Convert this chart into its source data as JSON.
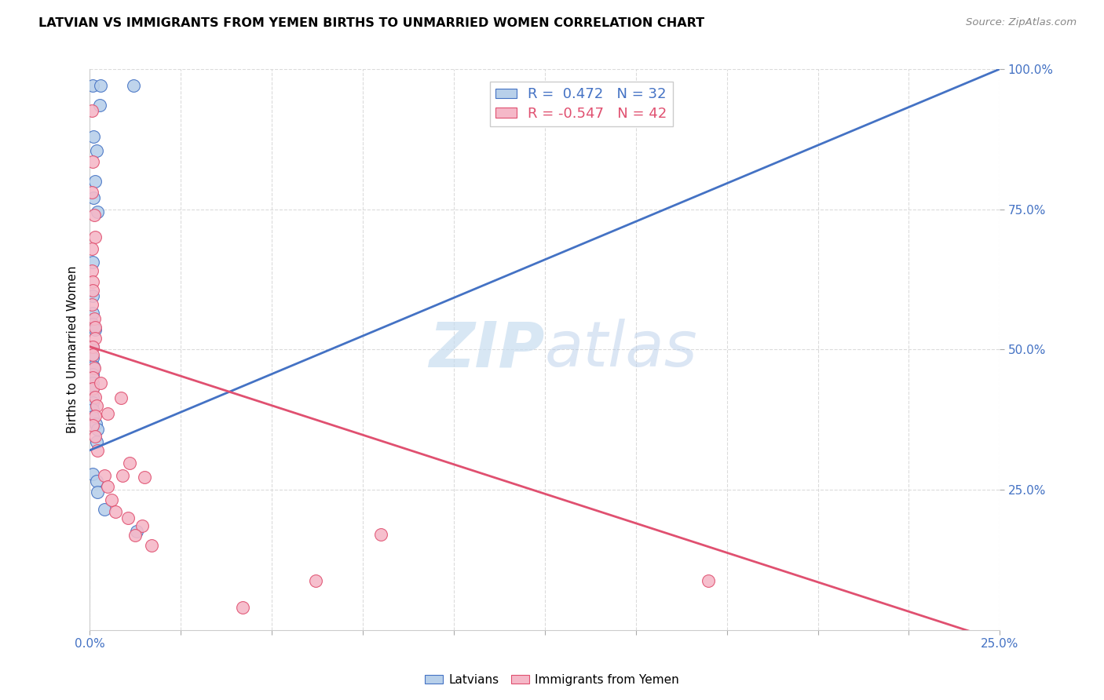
{
  "title": "LATVIAN VS IMMIGRANTS FROM YEMEN BIRTHS TO UNMARRIED WOMEN CORRELATION CHART",
  "source": "Source: ZipAtlas.com",
  "ylabel": "Births to Unmarried Women",
  "legend_latvians": "Latvians",
  "legend_yemen": "Immigrants from Yemen",
  "R_latvians": 0.472,
  "N_latvians": 32,
  "R_yemen": -0.547,
  "N_yemen": 42,
  "latvians_color": "#b8d0ea",
  "yemen_color": "#f5b8c8",
  "latvians_line_color": "#4472c4",
  "yemen_line_color": "#e05070",
  "latvians_scatter": [
    [
      0.0008,
      0.97
    ],
    [
      0.003,
      0.97
    ],
    [
      0.0028,
      0.935
    ],
    [
      0.012,
      0.97
    ],
    [
      0.001,
      0.88
    ],
    [
      0.0018,
      0.855
    ],
    [
      0.0014,
      0.8
    ],
    [
      0.001,
      0.77
    ],
    [
      0.0022,
      0.745
    ],
    [
      0.0008,
      0.655
    ],
    [
      0.0008,
      0.595
    ],
    [
      0.0008,
      0.565
    ],
    [
      0.0008,
      0.545
    ],
    [
      0.0014,
      0.535
    ],
    [
      0.0008,
      0.505
    ],
    [
      0.0008,
      0.485
    ],
    [
      0.001,
      0.47
    ],
    [
      0.0008,
      0.455
    ],
    [
      0.0008,
      0.44
    ],
    [
      0.0008,
      0.43
    ],
    [
      0.0008,
      0.415
    ],
    [
      0.0008,
      0.405
    ],
    [
      0.0008,
      0.393
    ],
    [
      0.0008,
      0.38
    ],
    [
      0.0016,
      0.368
    ],
    [
      0.0022,
      0.358
    ],
    [
      0.0018,
      0.335
    ],
    [
      0.0008,
      0.278
    ],
    [
      0.0018,
      0.265
    ],
    [
      0.0022,
      0.245
    ],
    [
      0.004,
      0.215
    ],
    [
      0.013,
      0.175
    ]
  ],
  "yemen_scatter": [
    [
      0.0006,
      0.925
    ],
    [
      0.0008,
      0.835
    ],
    [
      0.0006,
      0.78
    ],
    [
      0.0012,
      0.74
    ],
    [
      0.0014,
      0.7
    ],
    [
      0.0006,
      0.68
    ],
    [
      0.0006,
      0.64
    ],
    [
      0.0008,
      0.62
    ],
    [
      0.0008,
      0.605
    ],
    [
      0.0006,
      0.58
    ],
    [
      0.0012,
      0.555
    ],
    [
      0.0014,
      0.54
    ],
    [
      0.0014,
      0.52
    ],
    [
      0.0008,
      0.505
    ],
    [
      0.0008,
      0.49
    ],
    [
      0.0012,
      0.467
    ],
    [
      0.0008,
      0.45
    ],
    [
      0.0008,
      0.43
    ],
    [
      0.0014,
      0.415
    ],
    [
      0.002,
      0.4
    ],
    [
      0.0014,
      0.382
    ],
    [
      0.0008,
      0.365
    ],
    [
      0.0014,
      0.345
    ],
    [
      0.0022,
      0.32
    ],
    [
      0.003,
      0.44
    ],
    [
      0.004,
      0.275
    ],
    [
      0.005,
      0.255
    ],
    [
      0.006,
      0.232
    ],
    [
      0.005,
      0.385
    ],
    [
      0.007,
      0.21
    ],
    [
      0.009,
      0.275
    ],
    [
      0.011,
      0.298
    ],
    [
      0.015,
      0.272
    ],
    [
      0.0105,
      0.2
    ],
    [
      0.0145,
      0.185
    ],
    [
      0.0125,
      0.168
    ],
    [
      0.0085,
      0.413
    ],
    [
      0.017,
      0.15
    ],
    [
      0.042,
      0.04
    ],
    [
      0.062,
      0.088
    ],
    [
      0.08,
      0.17
    ],
    [
      0.17,
      0.088
    ]
  ],
  "latvians_trendline": [
    0.0,
    0.32,
    0.25,
    1.0
  ],
  "yemen_trendline": [
    0.0,
    0.505,
    0.25,
    -0.02
  ],
  "watermark_zip": "ZIP",
  "watermark_atlas": "atlas",
  "xmin": 0.0,
  "xmax": 0.25,
  "ymin": 0.0,
  "ymax": 1.0,
  "grid_color": "#d8d8d8",
  "ytick_values": [
    0.25,
    0.5,
    0.75,
    1.0
  ],
  "ytick_labels": [
    "25.0%",
    "50.0%",
    "75.0%",
    "100.0%"
  ]
}
